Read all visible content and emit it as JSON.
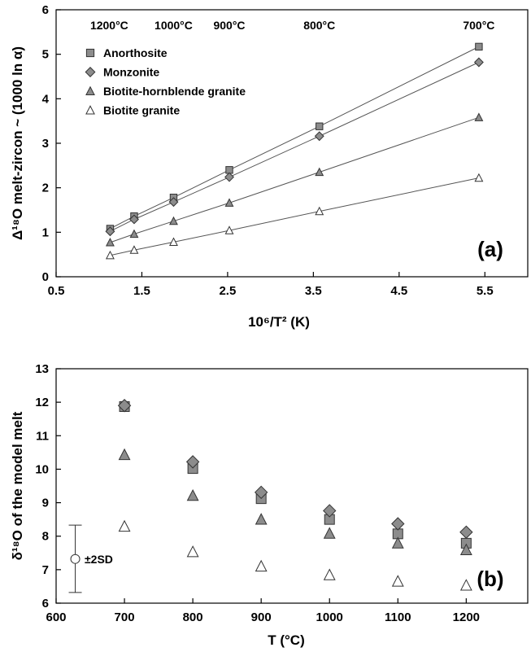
{
  "chart_data": [
    {
      "type": "line",
      "panel_label": "(a)",
      "xlabel": "10⁶/T² (K)",
      "ylabel": "Δ¹⁸O melt-zircon ~ (1000 ln α)",
      "xlim": [
        0.5,
        6.0
      ],
      "ylim": [
        0,
        6
      ],
      "x_ticks": [
        "0.5",
        "1.5",
        "2.5",
        "3.5",
        "4.5",
        "5.5"
      ],
      "y_ticks": [
        "0",
        "1",
        "2",
        "3",
        "4",
        "5",
        "6"
      ],
      "grid": false,
      "legend_position": "top-left",
      "temperature_labels": [
        {
          "text": "1200°C",
          "x": 1.12
        },
        {
          "text": "1000°C",
          "x": 1.87
        },
        {
          "text": "900°C",
          "x": 2.52
        },
        {
          "text": "800°C",
          "x": 3.57
        },
        {
          "text": "700°C",
          "x": 5.43
        }
      ],
      "series": [
        {
          "name": "Anorthosite",
          "marker": "square",
          "color": "#8c8c8c",
          "x": [
            1.13,
            1.41,
            1.87,
            2.52,
            3.57,
            5.43
          ],
          "y": [
            1.08,
            1.36,
            1.78,
            2.4,
            3.38,
            5.17
          ]
        },
        {
          "name": "Monzonite",
          "marker": "diamond",
          "color": "#8c8c8c",
          "x": [
            1.13,
            1.41,
            1.87,
            2.52,
            3.57,
            5.43
          ],
          "y": [
            1.02,
            1.29,
            1.68,
            2.24,
            3.16,
            4.82
          ]
        },
        {
          "name": "Biotite-hornblende granite",
          "marker": "triangle",
          "color": "#8c8c8c",
          "x": [
            1.13,
            1.41,
            1.87,
            2.52,
            3.57,
            5.43
          ],
          "y": [
            0.77,
            0.96,
            1.25,
            1.66,
            2.35,
            3.58
          ]
        },
        {
          "name": "Biotite granite",
          "marker": "triangle-open",
          "color": "#ffffff",
          "x": [
            1.13,
            1.41,
            1.87,
            2.52,
            3.57,
            5.43
          ],
          "y": [
            0.48,
            0.6,
            0.78,
            1.04,
            1.47,
            2.22
          ]
        }
      ]
    },
    {
      "type": "scatter",
      "panel_label": "(b)",
      "xlabel": "T (°C)",
      "ylabel": "δ¹⁸O of the model melt",
      "xlim": [
        600,
        1290
      ],
      "ylim": [
        6,
        13
      ],
      "x_ticks": [
        "600",
        "700",
        "800",
        "900",
        "1000",
        "1100",
        "1200"
      ],
      "y_ticks": [
        "6",
        "7",
        "8",
        "9",
        "10",
        "11",
        "12",
        "13"
      ],
      "grid": false,
      "error_bar": {
        "label": "±2SD",
        "x": 628,
        "y": 7.32,
        "low": 6.32,
        "high": 8.33
      },
      "series": [
        {
          "name": "Anorthosite",
          "marker": "square",
          "color": "#8c8c8c",
          "x": [
            700,
            800,
            900,
            1000,
            1100,
            1200
          ],
          "y": [
            11.87,
            10.02,
            9.12,
            8.5,
            8.07,
            7.79
          ]
        },
        {
          "name": "Monzonite",
          "marker": "diamond",
          "color": "#8c8c8c",
          "x": [
            700,
            800,
            900,
            1000,
            1100,
            1200
          ],
          "y": [
            11.9,
            10.22,
            9.31,
            8.76,
            8.37,
            8.12
          ]
        },
        {
          "name": "Biotite-hornblende granite",
          "marker": "triangle",
          "color": "#8c8c8c",
          "x": [
            700,
            800,
            900,
            1000,
            1100,
            1200
          ],
          "y": [
            10.43,
            9.21,
            8.5,
            8.08,
            7.79,
            7.59
          ]
        },
        {
          "name": "Biotite granite",
          "marker": "triangle-open",
          "color": "#ffffff",
          "x": [
            700,
            800,
            900,
            1000,
            1100,
            1200
          ],
          "y": [
            8.29,
            7.53,
            7.1,
            6.84,
            6.65,
            6.53
          ]
        }
      ]
    }
  ]
}
